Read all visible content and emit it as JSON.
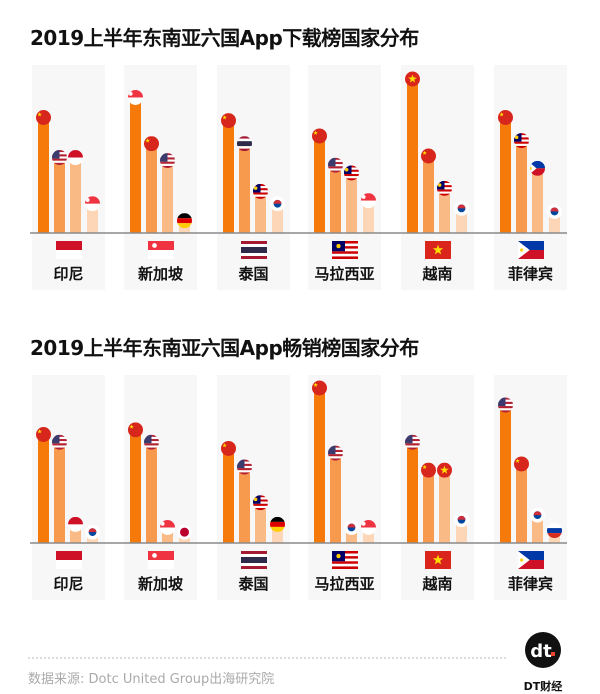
{
  "brand": {
    "logo_text": "dt",
    "name": "DT财经"
  },
  "source": "数据来源: Dotc United Group出海研究院",
  "colors": {
    "bar_ranks": [
      "#f57a0a",
      "#f89a4e",
      "#faba85",
      "#fcd6b6"
    ],
    "panel_bg": "#f7f7f8",
    "baseline": "#8a8a8a"
  },
  "chart_data": [
    {
      "type": "bar",
      "title": "2019上半年东南亚六国App下载榜国家分布",
      "ylim": [
        0,
        100
      ],
      "grid": false,
      "categories": [
        "印尼",
        "新加坡",
        "泰国",
        "马拉西亚",
        "越南",
        "菲律宾"
      ],
      "groups": [
        {
          "label": "印尼",
          "flag": "ID",
          "bars": [
            {
              "flag": "CN",
              "value": 75
            },
            {
              "flag": "US",
              "value": 49
            },
            {
              "flag": "ID",
              "value": 49
            },
            {
              "flag": "SG",
              "value": 19
            }
          ]
        },
        {
          "label": "新加坡",
          "flag": "SG",
          "bars": [
            {
              "flag": "SG",
              "value": 88
            },
            {
              "flag": "CN",
              "value": 58
            },
            {
              "flag": "US",
              "value": 47
            },
            {
              "flag": "DE",
              "value": 8
            }
          ]
        },
        {
          "label": "泰国",
          "flag": "TH",
          "bars": [
            {
              "flag": "CN",
              "value": 73
            },
            {
              "flag": "TH",
              "value": 58
            },
            {
              "flag": "MY",
              "value": 27
            },
            {
              "flag": "KR",
              "value": 19
            }
          ]
        },
        {
          "label": "马拉西亚",
          "flag": "MY",
          "bars": [
            {
              "flag": "CN",
              "value": 63
            },
            {
              "flag": "US",
              "value": 44
            },
            {
              "flag": "MY",
              "value": 39
            },
            {
              "flag": "SG",
              "value": 21
            }
          ]
        },
        {
          "label": "越南",
          "flag": "VN",
          "bars": [
            {
              "flag": "VN",
              "value": 100
            },
            {
              "flag": "CN",
              "value": 50
            },
            {
              "flag": "MY",
              "value": 29
            },
            {
              "flag": "KR",
              "value": 16
            }
          ]
        },
        {
          "label": "菲律宾",
          "flag": "PH",
          "bars": [
            {
              "flag": "CN",
              "value": 75
            },
            {
              "flag": "MY",
              "value": 60
            },
            {
              "flag": "PH",
              "value": 42
            },
            {
              "flag": "KR",
              "value": 14
            }
          ]
        }
      ]
    },
    {
      "type": "bar",
      "title": "2019上半年东南亚六国App畅销榜国家分布",
      "ylim": [
        0,
        100
      ],
      "grid": false,
      "categories": [
        "印尼",
        "新加坡",
        "泰国",
        "马拉西亚",
        "越南",
        "菲律宾"
      ],
      "groups": [
        {
          "label": "印尼",
          "flag": "ID",
          "bars": [
            {
              "flag": "CN",
              "value": 70
            },
            {
              "flag": "US",
              "value": 65
            },
            {
              "flag": "ID",
              "value": 12
            },
            {
              "flag": "KR",
              "value": 7
            }
          ]
        },
        {
          "label": "新加坡",
          "flag": "SG",
          "bars": [
            {
              "flag": "CN",
              "value": 73
            },
            {
              "flag": "US",
              "value": 65
            },
            {
              "flag": "SG",
              "value": 10
            },
            {
              "flag": "JP",
              "value": 7
            }
          ]
        },
        {
          "label": "泰国",
          "flag": "TH",
          "bars": [
            {
              "flag": "CN",
              "value": 61
            },
            {
              "flag": "US",
              "value": 49
            },
            {
              "flag": "MY",
              "value": 26
            },
            {
              "flag": "DE",
              "value": 12
            }
          ]
        },
        {
          "label": "马拉西亚",
          "flag": "MY",
          "bars": [
            {
              "flag": "CN",
              "value": 100
            },
            {
              "flag": "US",
              "value": 58
            },
            {
              "flag": "KR",
              "value": 10
            },
            {
              "flag": "SG",
              "value": 10
            }
          ]
        },
        {
          "label": "越南",
          "flag": "VN",
          "bars": [
            {
              "flag": "US",
              "value": 65
            },
            {
              "flag": "CN",
              "value": 47
            },
            {
              "flag": "VN",
              "value": 47
            },
            {
              "flag": "KR",
              "value": 15
            }
          ]
        },
        {
          "label": "菲律宾",
          "flag": "PH",
          "bars": [
            {
              "flag": "US",
              "value": 89
            },
            {
              "flag": "CN",
              "value": 51
            },
            {
              "flag": "KR",
              "value": 18
            },
            {
              "flag": "RU",
              "value": 8
            }
          ]
        }
      ]
    }
  ]
}
